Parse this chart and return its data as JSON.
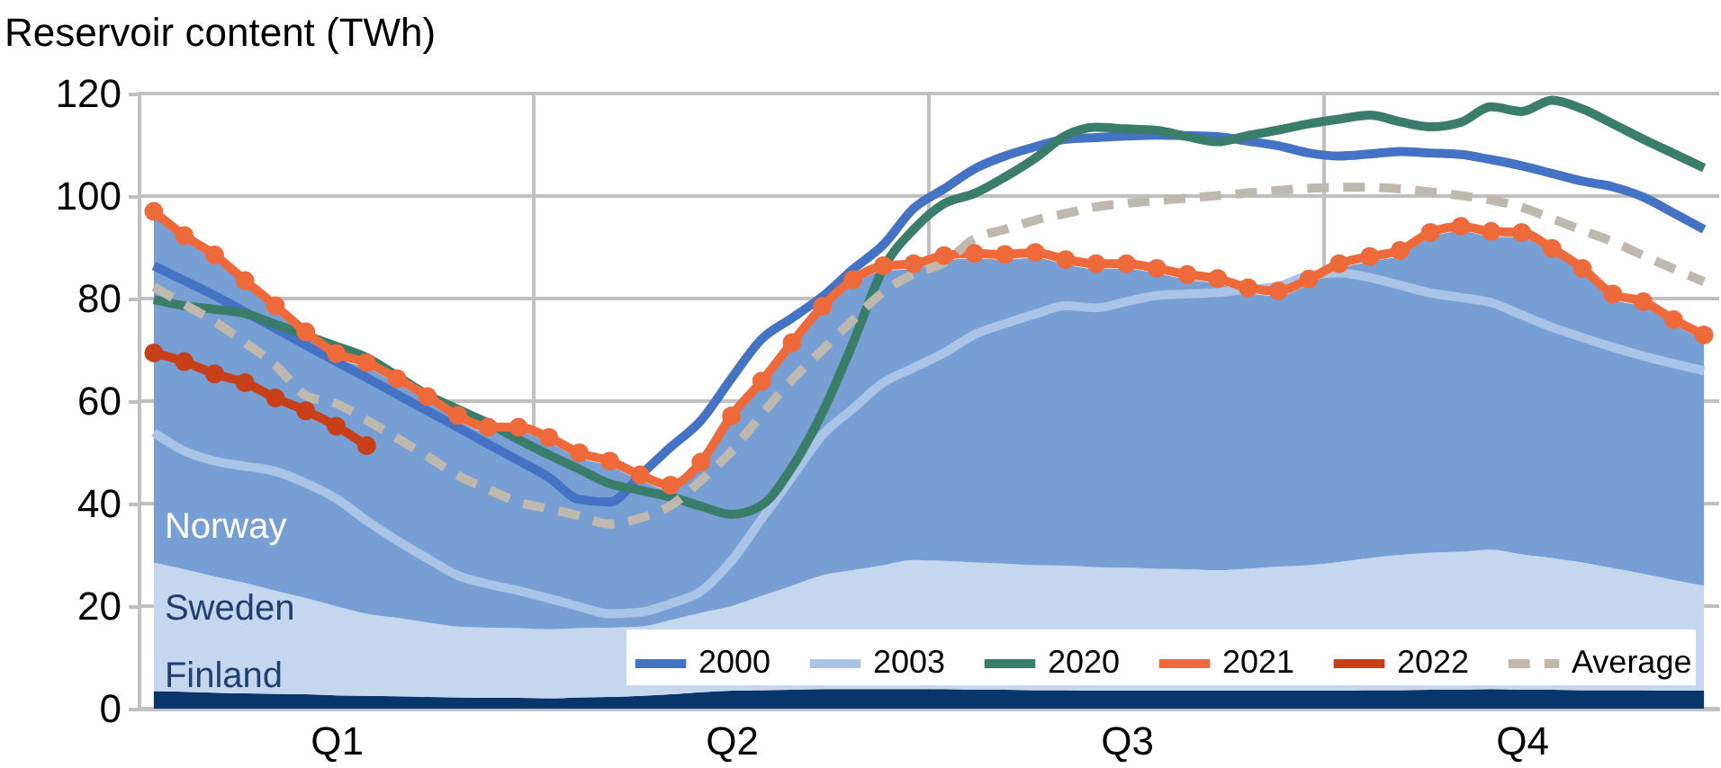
{
  "chart_data": {
    "type": "line",
    "ylabel": "Reservoir content (TWh)",
    "categories": [
      null,
      null,
      null,
      null,
      null,
      null,
      "Q1",
      null,
      null,
      null,
      null,
      null,
      null,
      null,
      null,
      null,
      null,
      null,
      null,
      "Q2",
      null,
      null,
      null,
      null,
      null,
      null,
      null,
      null,
      null,
      null,
      null,
      null,
      "Q3",
      null,
      null,
      null,
      null,
      null,
      null,
      null,
      null,
      null,
      null,
      null,
      null,
      "Q4",
      null,
      null,
      null,
      null,
      null,
      null
    ],
    "ylim": [
      0,
      120
    ],
    "yticks": [
      0,
      20,
      40,
      60,
      80,
      100,
      120
    ],
    "grid": true,
    "legend": "bottom right",
    "stacked": true,
    "series": [
      {
        "name": "Finland",
        "type": "area",
        "color": "#08366b",
        "values": [
          3.4,
          3.3,
          3.1,
          3.0,
          2.9,
          2.8,
          2.6,
          2.5,
          2.4,
          2.3,
          2.2,
          2.1,
          2.1,
          2.0,
          2.2,
          2.3,
          2.5,
          2.8,
          3.2,
          3.5,
          3.6,
          3.7,
          3.8,
          3.8,
          3.8,
          3.8,
          3.8,
          3.7,
          3.7,
          3.6,
          3.6,
          3.5,
          3.5,
          3.5,
          3.5,
          3.5,
          3.5,
          3.5,
          3.5,
          3.5,
          3.6,
          3.6,
          3.7,
          3.7,
          3.8,
          3.7,
          3.7,
          3.6,
          3.6,
          3.6,
          3.5,
          3.5
        ]
      },
      {
        "name": "Sweden",
        "type": "area",
        "color": "#c5d7ee",
        "values": [
          25.1,
          23.9,
          22.7,
          21.5,
          20.1,
          18.8,
          17.4,
          16.0,
          15.3,
          14.5,
          13.8,
          13.7,
          13.6,
          13.5,
          13.5,
          13.5,
          13.5,
          14.5,
          15.5,
          16.5,
          18.4,
          20.3,
          22.2,
          23.2,
          24.2,
          25.2,
          25.0,
          24.8,
          24.6,
          24.4,
          24.3,
          24.1,
          24.0,
          23.8,
          23.7,
          23.5,
          23.8,
          24.2,
          24.5,
          25.1,
          25.8,
          26.4,
          26.7,
          26.9,
          27.2,
          26.4,
          25.7,
          24.9,
          23.8,
          22.7,
          21.6,
          20.5
        ]
      },
      {
        "name": "Norway",
        "type": "area",
        "color": "#779fd3",
        "values": [
          67.5,
          64.1,
          61.7,
          58.0,
          54.6,
          50.9,
          48.3,
          48.0,
          45.7,
          43.1,
          40.2,
          38.1,
          38.2,
          36.4,
          33.2,
          31.5,
          28.6,
          25.3,
          28.4,
          36.1,
          40.9,
          46.4,
          51.5,
          55.7,
          57.4,
          56.8,
          58.6,
          59.3,
          59.3,
          60.0,
          58.7,
          58.2,
          58.3,
          57.6,
          56.5,
          55.9,
          53.8,
          52.8,
          54.8,
          57.2,
          57.8,
          58.4,
          61.5,
          62.5,
          61.1,
          61.8,
          59.4,
          56.4,
          52.5,
          52.1,
          49.8,
          47.9
        ]
      },
      {
        "name": "2000",
        "color": "#4472c4",
        "values": [
          86.4,
          83.5,
          80.6,
          77.4,
          74.2,
          70.9,
          67.7,
          64.6,
          61.3,
          58.1,
          54.9,
          51.6,
          48.4,
          45.1,
          40.8,
          40.3,
          45.5,
          51.0,
          56.2,
          64.4,
          72.1,
          76.2,
          80.4,
          85.7,
          90.5,
          97.6,
          101.4,
          105.3,
          107.8,
          109.6,
          111.1,
          111.4,
          111.7,
          111.9,
          111.8,
          111.6,
          110.7,
          109.8,
          108.4,
          107.8,
          108.2,
          108.7,
          108.4,
          108.1,
          107.1,
          105.9,
          104.4,
          102.9,
          101.8,
          99.8,
          96.7,
          93.5
        ]
      },
      {
        "name": "2003",
        "color": "#a9c4e6",
        "values": [
          53.9,
          50.3,
          48.3,
          47.3,
          46.3,
          44.0,
          41.0,
          36.7,
          32.8,
          29.3,
          26.0,
          24.3,
          23.0,
          21.5,
          19.9,
          18.5,
          18.8,
          20.5,
          22.9,
          28.8,
          37.0,
          45.2,
          53.4,
          58.5,
          63.6,
          66.5,
          69.4,
          73.0,
          75.1,
          77.0,
          78.6,
          78.2,
          79.4,
          80.6,
          80.9,
          81.2,
          81.8,
          82.4,
          84.5,
          85.0,
          84.1,
          82.6,
          81.1,
          80.2,
          79.2,
          76.8,
          74.4,
          72.4,
          70.5,
          68.8,
          67.3,
          65.9
        ]
      },
      {
        "name": "2020",
        "color": "#3a7d6b",
        "values": [
          79.8,
          78.6,
          77.9,
          77.1,
          75.0,
          72.8,
          70.7,
          68.5,
          64.9,
          61.2,
          58.4,
          55.7,
          52.5,
          49.5,
          46.7,
          43.9,
          42.6,
          41.3,
          39.5,
          37.9,
          39.7,
          47.1,
          57.8,
          71.3,
          85.9,
          93.5,
          98.5,
          100.5,
          103.7,
          107.4,
          111.8,
          113.4,
          113.1,
          112.8,
          111.6,
          110.6,
          111.8,
          112.9,
          114.1,
          115.0,
          115.8,
          114.5,
          113.5,
          114.4,
          117.4,
          116.5,
          118.7,
          117.0,
          114.1,
          111.1,
          108.3,
          105.5
        ]
      },
      {
        "name": "2021",
        "color": "#ee6a3a",
        "marker": "circle",
        "values": [
          97.0,
          92.3,
          88.5,
          83.5,
          78.6,
          73.5,
          69.3,
          67.5,
          64.4,
          60.9,
          57.2,
          54.9,
          54.9,
          52.9,
          49.9,
          48.3,
          45.6,
          43.6,
          48.1,
          57.1,
          63.9,
          71.4,
          78.5,
          83.7,
          86.4,
          86.8,
          88.4,
          88.8,
          88.6,
          89.0,
          87.6,
          86.8,
          86.8,
          85.9,
          84.7,
          83.9,
          82.1,
          81.5,
          83.8,
          86.8,
          88.2,
          89.4,
          92.9,
          94.1,
          93.1,
          92.9,
          89.8,
          85.9,
          80.9,
          79.4,
          75.9,
          72.9
        ]
      },
      {
        "name": "2022",
        "color": "#c8401a",
        "marker": "circle",
        "values": [
          69.4,
          67.7,
          65.3,
          63.6,
          60.6,
          58.1,
          55.1,
          51.3,
          null,
          null,
          null,
          null,
          null,
          null,
          null,
          null,
          null,
          null,
          null,
          null,
          null,
          null,
          null,
          null,
          null,
          null,
          null,
          null,
          null,
          null,
          null,
          null,
          null,
          null,
          null,
          null,
          null,
          null,
          null,
          null,
          null,
          null,
          null,
          null,
          null,
          null,
          null,
          null,
          null,
          null,
          null,
          null
        ]
      },
      {
        "name": "Average",
        "color": "#bfb8ae",
        "line_style": "dashed",
        "values": [
          82.3,
          78.9,
          75.5,
          71.4,
          67.0,
          61.1,
          59.5,
          56.3,
          52.8,
          49.2,
          45.5,
          42.8,
          40.3,
          39.0,
          37.6,
          36.0,
          37.2,
          39.6,
          44.5,
          50.2,
          57.4,
          64.2,
          70.0,
          75.8,
          81.3,
          84.8,
          87.0,
          91.7,
          93.5,
          95.3,
          96.6,
          97.9,
          98.6,
          99.1,
          99.6,
          100.1,
          100.6,
          101.1,
          101.5,
          101.7,
          101.7,
          101.4,
          100.8,
          100.1,
          99.2,
          97.8,
          95.6,
          93.3,
          91.1,
          88.4,
          85.8,
          83.3
        ]
      }
    ]
  }
}
